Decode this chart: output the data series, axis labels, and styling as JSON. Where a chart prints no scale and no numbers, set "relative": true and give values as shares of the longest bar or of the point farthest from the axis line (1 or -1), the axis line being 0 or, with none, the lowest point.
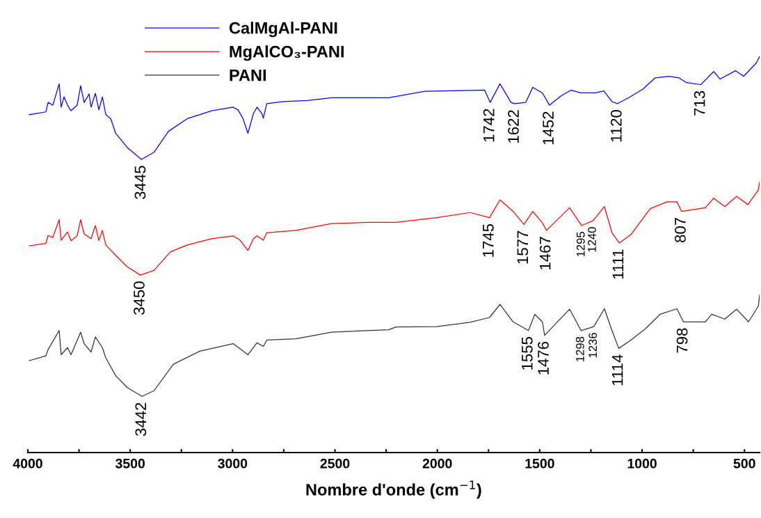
{
  "chart_data": {
    "type": "line",
    "relative": true,
    "xlabel": "Nombre d'onde (cm$^{−1}$)",
    "xlim": [
      4000,
      426
    ],
    "xticks": [
      4000,
      {
        "value": 3750,
        "label": null
      },
      3500,
      {
        "value": 3250,
        "label": null
      },
      3000,
      {
        "value": 2750,
        "label": null
      },
      2500,
      {
        "value": 2250,
        "label": null
      },
      2000,
      {
        "value": 1750,
        "label": null
      },
      1500,
      {
        "value": 1250,
        "label": null
      },
      1000,
      {
        "value": 750,
        "label": null
      },
      500
    ],
    "grid": false,
    "legend": "top left",
    "marker": "none",
    "line_style": "solid",
    "tick_labels": "x",
    "series": [
      {
        "name": "CalMgAl-PANI",
        "color": "#0000ff",
        "x": [
          3993,
          3912,
          3901,
          3878,
          3847,
          3837,
          3823,
          3806,
          3789,
          3759,
          3742,
          3725,
          3701,
          3691,
          3670,
          3653,
          3636,
          3619,
          3595,
          3571,
          3514,
          3445,
          3384,
          3313,
          3221,
          3102,
          2997,
          2973,
          2949,
          2925,
          2898,
          2881,
          2857,
          2850,
          2833,
          2752,
          2633,
          2517,
          2340,
          2238,
          2061,
          1769,
          1742,
          1694,
          1640,
          1622,
          1568,
          1534,
          1487,
          1452,
          1395,
          1347,
          1300,
          1228,
          1187,
          1147,
          1120,
          1065,
          997,
          936,
          868,
          820,
          783,
          713,
          650,
          619,
          544,
          504,
          443,
          426
        ],
        "values": [
          0.853,
          0.86,
          0.884,
          0.877,
          0.931,
          0.872,
          0.898,
          0.877,
          0.863,
          0.877,
          0.926,
          0.884,
          0.905,
          0.872,
          0.907,
          0.865,
          0.898,
          0.853,
          0.843,
          0.806,
          0.77,
          0.74,
          0.758,
          0.811,
          0.843,
          0.863,
          0.872,
          0.865,
          0.843,
          0.806,
          0.856,
          0.872,
          0.856,
          0.844,
          0.881,
          0.886,
          0.889,
          0.896,
          0.896,
          0.896,
          0.912,
          0.915,
          0.884,
          0.931,
          0.884,
          0.881,
          0.884,
          0.922,
          0.908,
          0.877,
          0.901,
          0.915,
          0.908,
          0.908,
          0.913,
          0.886,
          0.881,
          0.896,
          0.917,
          0.946,
          0.95,
          0.946,
          0.934,
          0.929,
          0.962,
          0.943,
          0.964,
          0.95,
          0.983,
          1.0
        ]
      },
      {
        "name": "MgAlCO₃-PANI",
        "color": "#ff0000",
        "x": [
          3993,
          3912,
          3901,
          3878,
          3847,
          3837,
          3806,
          3789,
          3759,
          3742,
          3725,
          3691,
          3670,
          3653,
          3636,
          3619,
          3571,
          3514,
          3450,
          3384,
          3303,
          3221,
          3102,
          2997,
          2963,
          2925,
          2898,
          2881,
          2850,
          2833,
          2691,
          2517,
          2340,
          2201,
          2004,
          1840,
          1745,
          1694,
          1630,
          1577,
          1534,
          1487,
          1467,
          1354,
          1295,
          1240,
          1184,
          1147,
          1111,
          1055,
          960,
          878,
          830,
          807,
          691,
          650,
          596,
          538,
          483,
          432,
          426
        ],
        "values": [
          0.522,
          0.528,
          0.548,
          0.543,
          0.588,
          0.536,
          0.557,
          0.535,
          0.547,
          0.588,
          0.552,
          0.54,
          0.573,
          0.535,
          0.561,
          0.524,
          0.498,
          0.469,
          0.448,
          0.46,
          0.507,
          0.524,
          0.54,
          0.547,
          0.536,
          0.51,
          0.54,
          0.547,
          0.536,
          0.555,
          0.561,
          0.578,
          0.581,
          0.581,
          0.593,
          0.606,
          0.593,
          0.638,
          0.609,
          0.576,
          0.609,
          0.58,
          0.561,
          0.618,
          0.573,
          0.585,
          0.621,
          0.555,
          0.529,
          0.55,
          0.616,
          0.633,
          0.633,
          0.609,
          0.618,
          0.642,
          0.621,
          0.647,
          0.626,
          0.663,
          0.683
        ]
      },
      {
        "name": "PANI",
        "color": "#333333",
        "x": [
          3993,
          3912,
          3901,
          3847,
          3837,
          3806,
          3789,
          3742,
          3725,
          3691,
          3670,
          3636,
          3619,
          3571,
          3514,
          3442,
          3384,
          3289,
          3160,
          2997,
          2925,
          2881,
          2850,
          2833,
          2691,
          2517,
          2238,
          2201,
          2004,
          1840,
          1745,
          1694,
          1630,
          1555,
          1524,
          1487,
          1476,
          1354,
          1298,
          1236,
          1184,
          1147,
          1114,
          1055,
          983,
          912,
          830,
          798,
          691,
          660,
          596,
          538,
          480,
          432,
          426
        ],
        "values": [
          0.232,
          0.244,
          0.26,
          0.308,
          0.247,
          0.265,
          0.247,
          0.304,
          0.275,
          0.254,
          0.292,
          0.265,
          0.239,
          0.194,
          0.164,
          0.142,
          0.156,
          0.223,
          0.256,
          0.275,
          0.247,
          0.277,
          0.268,
          0.284,
          0.287,
          0.304,
          0.31,
          0.317,
          0.318,
          0.329,
          0.341,
          0.374,
          0.33,
          0.308,
          0.349,
          0.33,
          0.296,
          0.362,
          0.308,
          0.318,
          0.363,
          0.308,
          0.263,
          0.284,
          0.313,
          0.349,
          0.363,
          0.33,
          0.33,
          0.349,
          0.337,
          0.362,
          0.33,
          0.37,
          0.398
        ]
      }
    ],
    "annotations": [
      {
        "text": "3445",
        "x": 3445,
        "y": 0.74
      },
      {
        "text": "1742",
        "x": 1742,
        "y": 0.884
      },
      {
        "text": "1622",
        "x": 1622,
        "y": 0.881
      },
      {
        "text": "1452",
        "x": 1452,
        "y": 0.877
      },
      {
        "text": "1120",
        "x": 1120,
        "y": 0.881
      },
      {
        "text": "713",
        "x": 713,
        "y": 0.929
      },
      {
        "text": "3450",
        "x": 3450,
        "y": 0.448
      },
      {
        "text": "1745",
        "x": 1745,
        "y": 0.593
      },
      {
        "text": "1577",
        "x": 1577,
        "y": 0.576
      },
      {
        "text": "1467",
        "x": 1467,
        "y": 0.561
      },
      {
        "text": "1295",
        "x": 1295,
        "y": 0.573
      },
      {
        "text": "1240",
        "x": 1240,
        "y": 0.585
      },
      {
        "text": "1111",
        "x": 1111,
        "y": 0.529
      },
      {
        "text": "807",
        "x": 807,
        "y": 0.609
      },
      {
        "text": "3442",
        "x": 3442,
        "y": 0.142
      },
      {
        "text": "1555",
        "x": 1555,
        "y": 0.308
      },
      {
        "text": "1476",
        "x": 1476,
        "y": 0.296
      },
      {
        "text": "1298",
        "x": 1298,
        "y": 0.308
      },
      {
        "text": "1236",
        "x": 1236,
        "y": 0.318
      },
      {
        "text": "1114",
        "x": 1114,
        "y": 0.263
      },
      {
        "text": "798",
        "x": 798,
        "y": 0.33
      }
    ]
  }
}
